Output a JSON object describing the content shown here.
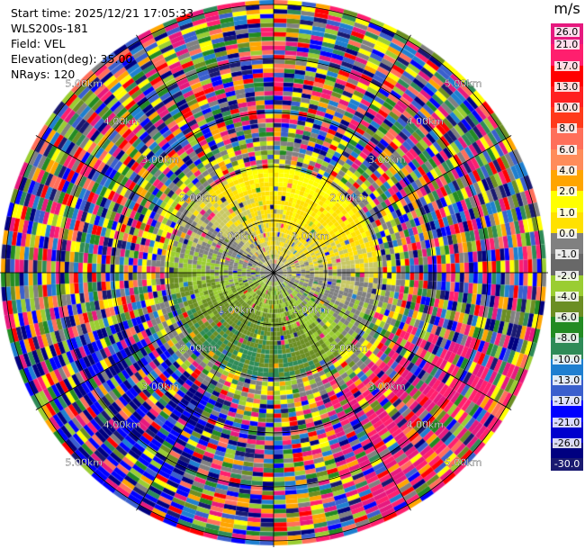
{
  "header": {
    "start_time": "Start time: 2025/12/21 17:05:33",
    "instrument": "WLS200s-181",
    "field": "Field: VEL",
    "elevation": "Elevation(deg): 35.00",
    "nrays": "NRays: 120"
  },
  "colorbar": {
    "unit": "m/s",
    "ticks": [
      "26.0",
      "21.0",
      "17.0",
      "13.0",
      "10.0",
      "8.0",
      "6.0",
      "4.0",
      "2.0",
      "1.0",
      "0.0",
      "-1.0",
      "-2.0",
      "-4.0",
      "-6.0",
      "-8.0",
      "-10.0",
      "-13.0",
      "-17.0",
      "-21.0",
      "-26.0",
      "-30.0"
    ],
    "colors": [
      "#e6197e",
      "#ff1f6e",
      "#ff0000",
      "#ff2020",
      "#ff3a1a",
      "#ff6f5a",
      "#ff8c5a",
      "#ffa500",
      "#ffff00",
      "#ffe100",
      "#808080",
      "#686868",
      "#9acd32",
      "#6b8e23",
      "#228b22",
      "#2e8b57",
      "#1e7fd0",
      "#3a5fcd",
      "#0000ff",
      "#0000cd",
      "#000080",
      "#191970"
    ],
    "bottom_label": "-30.0"
  },
  "range_rings": {
    "labels": [
      "1.00km",
      "2.00km",
      "3.00km",
      "4.00km",
      "5.00km"
    ]
  },
  "plot": {
    "rays": 120,
    "gates": 60,
    "max_range_km": 5.5
  }
}
